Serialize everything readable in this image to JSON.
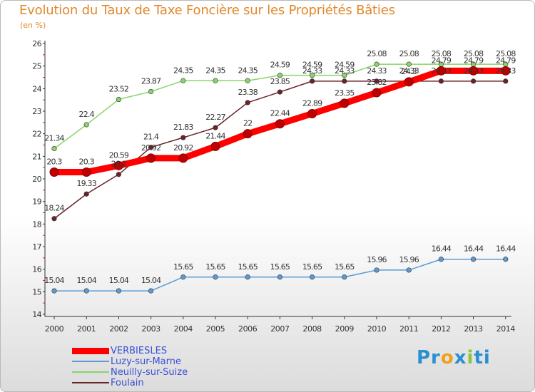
{
  "title": "Evolution du Taux de Taxe Foncière sur les Propriétés Bâties",
  "unit": "(en %)",
  "logo": {
    "p": "Pr",
    "o": "o",
    "x": "x",
    "i": "i",
    "t": "ti"
  },
  "chart_data": {
    "type": "line",
    "title": "Evolution du Taux de Taxe Foncière sur les Propriétés Bâties",
    "ylabel": "(en %)",
    "xlabel": "",
    "x": [
      "2000",
      "2001",
      "2002",
      "2003",
      "2004",
      "2005",
      "2006",
      "2007",
      "2008",
      "2009",
      "2010",
      "2011",
      "2012",
      "2013",
      "2014"
    ],
    "ylim": [
      14,
      26
    ],
    "yticks": [
      "14",
      "15",
      "16",
      "17",
      "18",
      "19",
      "20",
      "21",
      "22",
      "23",
      "24",
      "25",
      "26"
    ],
    "grid": false,
    "legend_position": "bottom-left",
    "series": [
      {
        "name": "VERBIESLES",
        "color": "#ff0000",
        "values": [
          20.3,
          20.3,
          20.59,
          20.92,
          20.92,
          21.44,
          22,
          22.44,
          22.89,
          23.35,
          23.82,
          24.3,
          24.79,
          24.79,
          24.79
        ],
        "labels": [
          "20.3",
          "20.3",
          "20.59",
          "20.92",
          "20.92",
          "21.44",
          "22",
          "22.44",
          "22.89",
          "23.35",
          "23.82",
          "24.3",
          "24.79",
          "24.79",
          "24.79"
        ]
      },
      {
        "name": "Luzy-sur-Marne",
        "color": "#5b9bd1",
        "values": [
          15.04,
          15.04,
          15.04,
          15.04,
          15.65,
          15.65,
          15.65,
          15.65,
          15.65,
          15.65,
          15.96,
          15.96,
          16.44,
          16.44,
          16.44
        ],
        "labels": [
          "15.04",
          "15.04",
          "15.04",
          "15.04",
          "15.65",
          "15.65",
          "15.65",
          "15.65",
          "15.65",
          "15.65",
          "15.96",
          "15.96",
          "16.44",
          "16.44",
          "16.44"
        ]
      },
      {
        "name": "Neuilly-sur-Suize",
        "color": "#88d468",
        "values": [
          21.34,
          22.4,
          23.52,
          23.87,
          24.35,
          24.35,
          24.35,
          24.59,
          24.59,
          24.59,
          25.08,
          25.08,
          25.08,
          25.08,
          25.08
        ],
        "labels": [
          "21.34",
          "22.4",
          "23.52",
          "23.87",
          "24.35",
          "24.35",
          "24.35",
          "24.59",
          "24.59",
          "24.59",
          "25.08",
          "25.08",
          "25.08",
          "25.08",
          "25.08"
        ]
      },
      {
        "name": "Foulain",
        "color": "#6a2329",
        "values": [
          18.24,
          19.33,
          20.2,
          21.4,
          21.83,
          22.27,
          23.38,
          23.85,
          24.33,
          24.33,
          24.33,
          24.33,
          24.33,
          24.33,
          24.33
        ],
        "labels": [
          "18.24",
          "19.33",
          "20.2",
          "21.4",
          "21.83",
          "22.27",
          "23.38",
          "23.85",
          "24.33",
          "24.33",
          "24.33",
          "24.33",
          "24.33",
          "24.33",
          "24.33"
        ]
      }
    ]
  }
}
